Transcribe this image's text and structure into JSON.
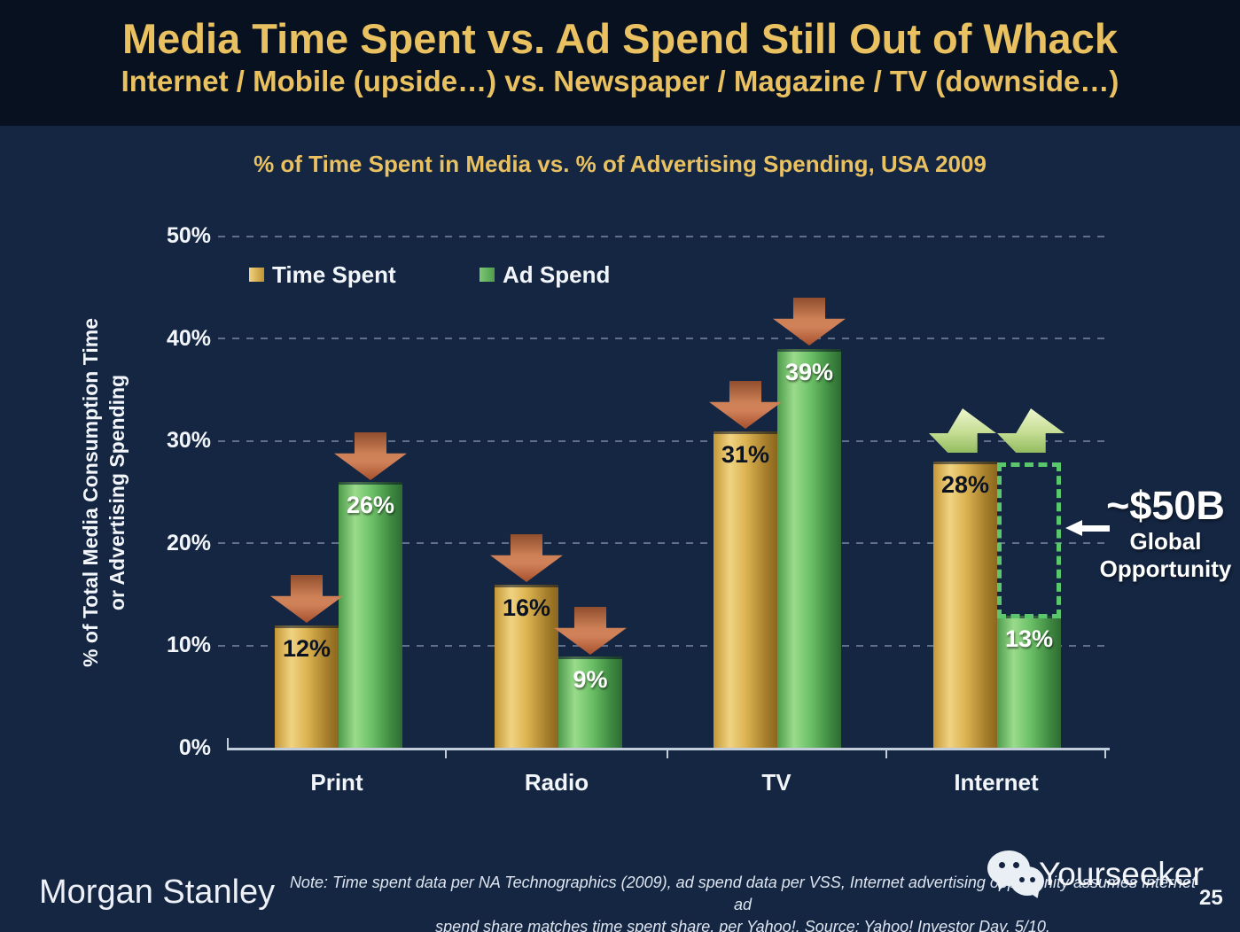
{
  "slide": {
    "header": {
      "title": "Media Time Spent vs. Ad Spend Still Out of Whack",
      "subtitle": "Internet / Mobile (upside…) vs. Newspaper / Magazine / TV (downside…)"
    },
    "footer": {
      "brand": "Morgan Stanley",
      "note_line1": "Note: Time spent data per NA Technographics (2009), ad spend data per VSS, Internet advertising opportunity assumes Internet ad",
      "note_line2": "spend share matches time spent share, per Yahoo!. Source: Yahoo! Investor Day, 5/10.",
      "watermark": "Yourseeker",
      "page_number": "25"
    }
  },
  "chart_data": {
    "type": "bar",
    "title": "% of Time Spent in Media vs. % of Advertising Spending, USA 2009",
    "ylabel_line1": "% of Total Media Consumption Time",
    "ylabel_line2": "or Advertising Spending",
    "categories": [
      "Print",
      "Radio",
      "TV",
      "Internet"
    ],
    "series": [
      {
        "name": "Time Spent",
        "color": "#D8AC45",
        "values": [
          12,
          16,
          31,
          28
        ],
        "labels": [
          "12%",
          "16%",
          "31%",
          "28%"
        ]
      },
      {
        "name": "Ad Spend",
        "color": "#56A95B",
        "values": [
          26,
          9,
          39,
          13
        ],
        "labels": [
          "26%",
          "9%",
          "39%",
          "13%"
        ]
      }
    ],
    "ylim": [
      0,
      50
    ],
    "yticks": [
      "50%",
      "40%",
      "30%",
      "20%",
      "10%",
      "0%"
    ],
    "grid": "horizontal dashed",
    "legend_position": "top-left inside plot",
    "trend_arrows": [
      {
        "category": "Print",
        "series": "Time Spent",
        "direction": "down"
      },
      {
        "category": "Print",
        "series": "Ad Spend",
        "direction": "down"
      },
      {
        "category": "Radio",
        "series": "Time Spent",
        "direction": "down"
      },
      {
        "category": "Radio",
        "series": "Ad Spend",
        "direction": "down"
      },
      {
        "category": "TV",
        "series": "Time Spent",
        "direction": "down"
      },
      {
        "category": "TV",
        "series": "Ad Spend",
        "direction": "down"
      },
      {
        "category": "Internet",
        "series": "Time Spent",
        "direction": "up"
      },
      {
        "category": "Internet",
        "series": "Ad Spend",
        "direction": "up"
      }
    ],
    "annotation": {
      "headline": "~$50B",
      "caption_line1": "Global",
      "caption_line2": "Opportunity",
      "target": "gap between Internet time spent (28%) and ad spend (13%)",
      "box_color": "#5BC76D",
      "arrow_down_color": "#C2633C",
      "arrow_up_color": "#BBDA8A",
      "accent_gold": "#E9C161"
    }
  }
}
